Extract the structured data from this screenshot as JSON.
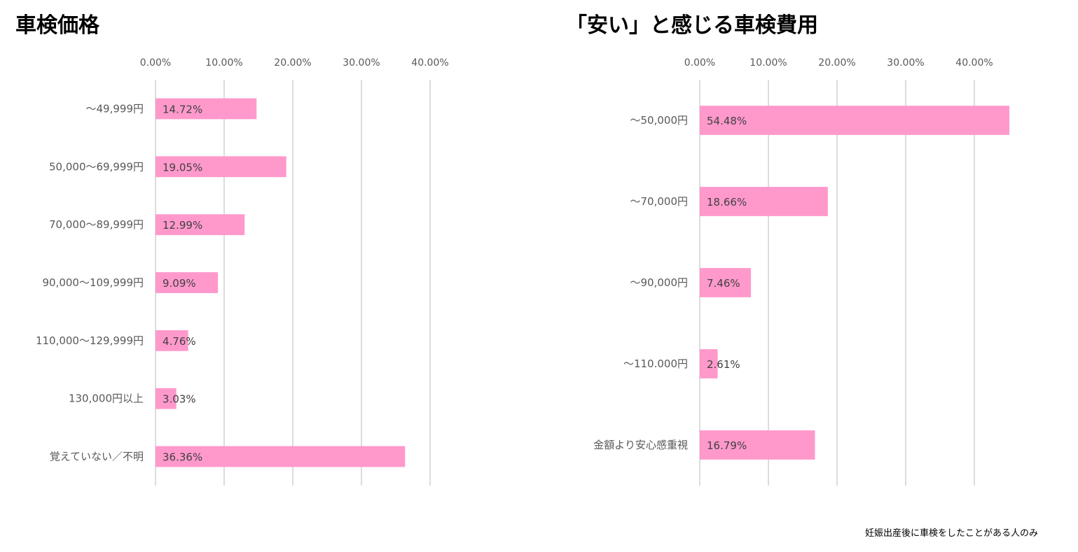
{
  "footnote": "妊娠出産後に車検をしたことがある人のみ",
  "colors": {
    "bar": "#ff99cc",
    "grid": "#d0d0d0",
    "tick_text": "#595959",
    "label_text": "#404040"
  },
  "chart_data": [
    {
      "type": "bar",
      "orientation": "horizontal",
      "title": "車検価格",
      "xlim": [
        0,
        40
      ],
      "x_ticks": [
        "0.00%",
        "10.00%",
        "20.00%",
        "30.00%",
        "40.00%"
      ],
      "categories": [
        "～49,999円",
        "50,000～69,999円",
        "70,000～89,999円",
        "90,000～109,999円",
        "110,000～129,999円",
        "130,000円以上",
        "覚えていない／不明"
      ],
      "values": [
        14.72,
        19.05,
        12.99,
        9.09,
        4.76,
        3.03,
        36.36
      ],
      "value_labels": [
        "14.72%",
        "19.05%",
        "12.99%",
        "9.09%",
        "4.76%",
        "3.03%",
        "36.36%"
      ],
      "grid": true,
      "axis_position": "top"
    },
    {
      "type": "bar",
      "orientation": "horizontal",
      "title": "「安い」と感じる車検費用",
      "xlim": [
        0,
        40
      ],
      "x_ticks": [
        "0.00%",
        "10.00%",
        "20.00%",
        "30.00%",
        "40.00%"
      ],
      "categories": [
        "～50,000円",
        "～70,000円",
        "～90,000円",
        "～110.000円",
        "金額より安心感重視"
      ],
      "values": [
        54.48,
        18.66,
        7.46,
        2.61,
        16.79
      ],
      "value_labels": [
        "54.48%",
        "18.66%",
        "7.46%",
        "2.61%",
        "16.79%"
      ],
      "grid": true,
      "axis_position": "top"
    }
  ]
}
